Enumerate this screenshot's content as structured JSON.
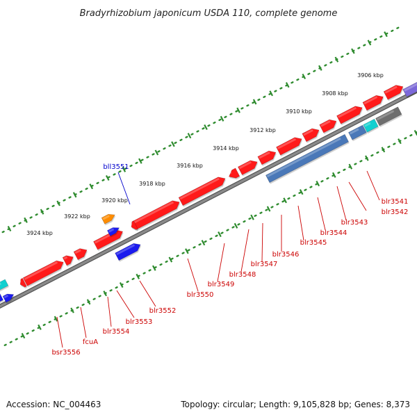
{
  "title": "Bradyrhizobium japonicum USDA 110, complete genome",
  "footer": {
    "accession": "Accession: NC_004463",
    "summary": "Topology: circular; Length: 9,105,828 bp; Genes: 8,373"
  },
  "colors": {
    "backbone": "#8a8a8a",
    "tick_track": "#2e8b2e",
    "label_red": "#cc0000",
    "label_blue": "#0000cc",
    "gene_red": "#ff1a1a",
    "gene_blue": "#1a1aee",
    "gene_steel": "#4a78b8",
    "gene_cyan": "#11d0d0",
    "gene_orange": "#ff8c00",
    "gene_gray": "#6e6e6e",
    "gene_purple": "#7b68d8"
  },
  "tick_labels": [
    {
      "text": "3906 kbp"
    },
    {
      "text": "3908 kbp"
    },
    {
      "text": "3910 kbp"
    },
    {
      "text": "3912 kbp"
    },
    {
      "text": "3914 kbp"
    },
    {
      "text": "3916 kbp"
    },
    {
      "text": "3918 kbp"
    },
    {
      "text": "3920 kbp"
    },
    {
      "text": "3922 kbp"
    },
    {
      "text": "3924 kbp"
    }
  ],
  "gene_labels": [
    {
      "text": "bll3551",
      "color": "blue"
    },
    {
      "text": "blr3541",
      "color": "red"
    },
    {
      "text": "blr3542",
      "color": "red"
    },
    {
      "text": "blr3543",
      "color": "red"
    },
    {
      "text": "blr3544",
      "color": "red"
    },
    {
      "text": "blr3545",
      "color": "red"
    },
    {
      "text": "blr3546",
      "color": "red"
    },
    {
      "text": "blr3547",
      "color": "red"
    },
    {
      "text": "blr3548",
      "color": "red"
    },
    {
      "text": "blr3549",
      "color": "red"
    },
    {
      "text": "blr3550",
      "color": "red"
    },
    {
      "text": "blr3552",
      "color": "red"
    },
    {
      "text": "blr3553",
      "color": "red"
    },
    {
      "text": "blr3554",
      "color": "red"
    },
    {
      "text": "fcuA",
      "color": "red"
    },
    {
      "text": "bsr3556",
      "color": "red"
    }
  ]
}
